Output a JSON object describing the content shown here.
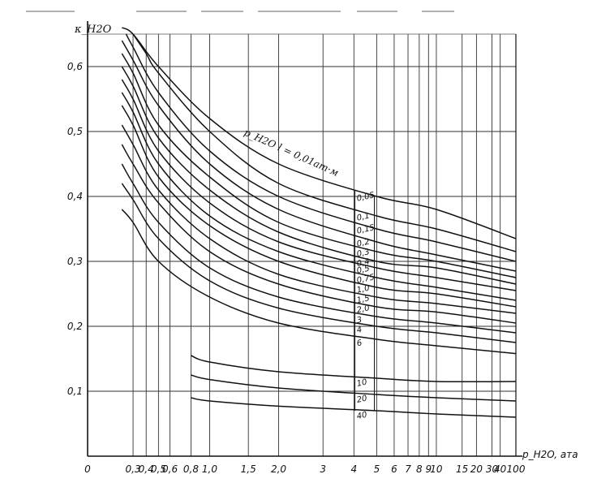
{
  "chart_data": {
    "type": "line",
    "title": "",
    "xlabel": "p_H2O, ата",
    "ylabel": "κ_H2O",
    "parameter_label": "p_H2O l = 0,01ат·м",
    "x_scale": "reciprocal",
    "xlim": [
      0,
      100
    ],
    "ylim": [
      0,
      0.65
    ],
    "grid": true,
    "x_tick_labels": [
      "0",
      "0,3",
      "0,4",
      "0,5",
      "0,6",
      "0,8",
      "1,0",
      "1,5",
      "2,0",
      "3",
      "4",
      "5",
      "6",
      "7",
      "8",
      "9",
      "10",
      "15",
      "20",
      "30",
      "40",
      "100"
    ],
    "x_tick_values": [
      0,
      0.3,
      0.4,
      0.5,
      0.6,
      0.8,
      1.0,
      1.5,
      2.0,
      3,
      4,
      5,
      6,
      7,
      8,
      9,
      10,
      15,
      20,
      30,
      40,
      100
    ],
    "y_tick_labels": [
      "0,1",
      "0,2",
      "0,3",
      "0,4",
      "0,5",
      "0,6"
    ],
    "y_tick_values": [
      0.1,
      0.2,
      0.3,
      0.4,
      0.5,
      0.6
    ],
    "series": [
      {
        "name": "0,05",
        "x": [
          0.22,
          0.3,
          0.5,
          1.0,
          2.0,
          5,
          10,
          100
        ],
        "y": [
          0.66,
          0.65,
          0.6,
          0.52,
          0.45,
          0.4,
          0.38,
          0.335
        ]
      },
      {
        "name": "0,1",
        "x": [
          0.3,
          0.4,
          0.5,
          1.0,
          2.0,
          5,
          10,
          100
        ],
        "y": [
          0.65,
          0.62,
          0.59,
          0.5,
          0.42,
          0.37,
          0.35,
          0.315
        ]
      },
      {
        "name": "0,15",
        "x": [
          0.25,
          0.3,
          0.5,
          1.0,
          2.0,
          5,
          10,
          100
        ],
        "y": [
          0.65,
          0.63,
          0.56,
          0.47,
          0.4,
          0.35,
          0.33,
          0.3
        ]
      },
      {
        "name": "0,2",
        "x": [
          0.22,
          0.3,
          0.5,
          1.0,
          2.0,
          5,
          10,
          100
        ],
        "y": [
          0.64,
          0.61,
          0.54,
          0.45,
          0.38,
          0.33,
          0.31,
          0.285
        ]
      },
      {
        "name": "0,3",
        "x": [
          0.22,
          0.3,
          0.5,
          1.0,
          2.0,
          5,
          10,
          100
        ],
        "y": [
          0.62,
          0.59,
          0.51,
          0.43,
          0.36,
          0.315,
          0.3,
          0.275
        ]
      },
      {
        "name": "0,4",
        "x": [
          0.22,
          0.3,
          0.5,
          1.0,
          2.0,
          5,
          10,
          100
        ],
        "y": [
          0.6,
          0.57,
          0.49,
          0.41,
          0.345,
          0.3,
          0.29,
          0.265
        ]
      },
      {
        "name": "0,5",
        "x": [
          0.22,
          0.3,
          0.5,
          1.0,
          2.0,
          5,
          10,
          100
        ],
        "y": [
          0.58,
          0.55,
          0.47,
          0.39,
          0.33,
          0.29,
          0.275,
          0.255
        ]
      },
      {
        "name": "0,75",
        "x": [
          0.22,
          0.3,
          0.5,
          1.0,
          2.0,
          5,
          10,
          100
        ],
        "y": [
          0.56,
          0.53,
          0.45,
          0.37,
          0.315,
          0.275,
          0.26,
          0.24
        ]
      },
      {
        "name": "1,0",
        "x": [
          0.22,
          0.3,
          0.5,
          1.0,
          2.0,
          5,
          10,
          100
        ],
        "y": [
          0.54,
          0.51,
          0.43,
          0.355,
          0.3,
          0.26,
          0.25,
          0.23
        ]
      },
      {
        "name": "1,5",
        "x": [
          0.22,
          0.3,
          0.5,
          1.0,
          2.0,
          5,
          10,
          100
        ],
        "y": [
          0.51,
          0.48,
          0.41,
          0.335,
          0.28,
          0.245,
          0.235,
          0.22
        ]
      },
      {
        "name": "2,0",
        "x": [
          0.22,
          0.3,
          0.5,
          1.0,
          2.0,
          5,
          10,
          100
        ],
        "y": [
          0.48,
          0.45,
          0.39,
          0.315,
          0.265,
          0.23,
          0.222,
          0.205
        ]
      },
      {
        "name": "3",
        "x": [
          0.22,
          0.3,
          0.5,
          1.0,
          2.0,
          5,
          10,
          100
        ],
        "y": [
          0.45,
          0.42,
          0.36,
          0.29,
          0.245,
          0.215,
          0.205,
          0.19
        ]
      },
      {
        "name": "4",
        "x": [
          0.22,
          0.3,
          0.5,
          1.0,
          2.0,
          5,
          10,
          100
        ],
        "y": [
          0.42,
          0.395,
          0.335,
          0.27,
          0.228,
          0.2,
          0.19,
          0.175
        ]
      },
      {
        "name": "6",
        "x": [
          0.22,
          0.3,
          0.5,
          1.0,
          2.0,
          5,
          10,
          100
        ],
        "y": [
          0.38,
          0.36,
          0.3,
          0.245,
          0.205,
          0.18,
          0.17,
          0.158
        ]
      },
      {
        "name": "10",
        "x": [
          0.8,
          1.0,
          2.0,
          5,
          10,
          100
        ],
        "y": [
          0.155,
          0.145,
          0.13,
          0.12,
          0.115,
          0.115
        ]
      },
      {
        "name": "20",
        "x": [
          0.8,
          1.0,
          2.0,
          5,
          10,
          100
        ],
        "y": [
          0.125,
          0.118,
          0.105,
          0.095,
          0.09,
          0.085
        ]
      },
      {
        "name": "40",
        "x": [
          0.8,
          1.0,
          2.0,
          5,
          10,
          100
        ],
        "y": [
          0.09,
          0.085,
          0.077,
          0.07,
          0.065,
          0.06
        ]
      }
    ]
  }
}
